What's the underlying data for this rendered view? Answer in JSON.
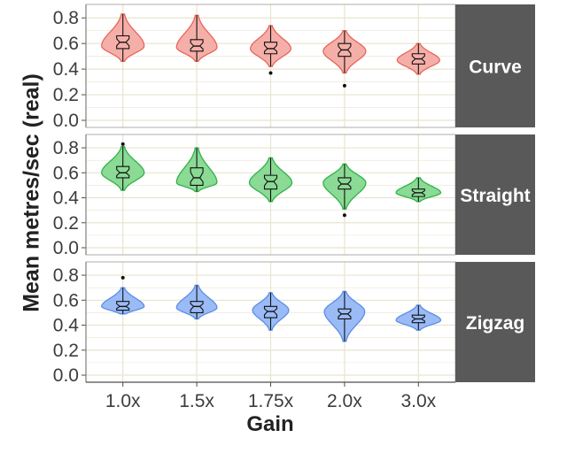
{
  "chart_data": {
    "type": "violin",
    "xlabel": "Gain",
    "ylabel": "Mean metres/sec (real)",
    "categories": [
      "1.0x",
      "1.5x",
      "1.75x",
      "2.0x",
      "3.0x"
    ],
    "ylim": [
      0.0,
      0.85
    ],
    "yticks": [
      "0.0",
      "0.2",
      "0.4",
      "0.6",
      "0.8"
    ],
    "grid": true,
    "colors": {
      "panel_strip": "#595959",
      "strip_text": "#ffffff",
      "grid": "#e8e4cf",
      "axis": "#4d4d4d",
      "text": "#3d3d3d"
    },
    "panels": [
      {
        "label": "Curve",
        "fill": "#f4a6a0",
        "stroke": "#e8655b",
        "groups": [
          {
            "category": "1.0x",
            "min": 0.46,
            "q1": 0.56,
            "median": 0.61,
            "q3": 0.66,
            "max": 0.83,
            "outliers": [],
            "mode": 0.58,
            "width": 1.0
          },
          {
            "category": "1.5x",
            "min": 0.46,
            "q1": 0.54,
            "median": 0.58,
            "q3": 0.63,
            "max": 0.82,
            "outliers": [],
            "mode": 0.57,
            "width": 0.95
          },
          {
            "category": "1.75x",
            "min": 0.42,
            "q1": 0.52,
            "median": 0.56,
            "q3": 0.61,
            "max": 0.74,
            "outliers": [
              0.37
            ],
            "mode": 0.56,
            "width": 0.95
          },
          {
            "category": "2.0x",
            "min": 0.37,
            "q1": 0.5,
            "median": 0.55,
            "q3": 0.6,
            "max": 0.7,
            "outliers": [
              0.27
            ],
            "mode": 0.54,
            "width": 1.0
          },
          {
            "category": "3.0x",
            "min": 0.36,
            "q1": 0.44,
            "median": 0.48,
            "q3": 0.52,
            "max": 0.6,
            "outliers": [],
            "mode": 0.47,
            "width": 1.0
          }
        ]
      },
      {
        "label": "Straight",
        "fill": "#7ed68a",
        "stroke": "#2fb34a",
        "groups": [
          {
            "category": "1.0x",
            "min": 0.46,
            "q1": 0.56,
            "median": 0.6,
            "q3": 0.65,
            "max": 0.81,
            "outliers": [
              0.83
            ],
            "mode": 0.6,
            "width": 1.0
          },
          {
            "category": "1.5x",
            "min": 0.45,
            "q1": 0.5,
            "median": 0.56,
            "q3": 0.64,
            "max": 0.8,
            "outliers": [],
            "mode": 0.52,
            "width": 0.95
          },
          {
            "category": "1.75x",
            "min": 0.37,
            "q1": 0.47,
            "median": 0.53,
            "q3": 0.58,
            "max": 0.72,
            "outliers": [],
            "mode": 0.52,
            "width": 1.0
          },
          {
            "category": "2.0x",
            "min": 0.31,
            "q1": 0.47,
            "median": 0.51,
            "q3": 0.56,
            "max": 0.67,
            "outliers": [
              0.26
            ],
            "mode": 0.52,
            "width": 1.0
          },
          {
            "category": "3.0x",
            "min": 0.37,
            "q1": 0.41,
            "median": 0.44,
            "q3": 0.47,
            "max": 0.56,
            "outliers": [],
            "mode": 0.44,
            "width": 1.05
          }
        ]
      },
      {
        "label": "Zigzag",
        "fill": "#8fb4f5",
        "stroke": "#5b8ee6",
        "groups": [
          {
            "category": "1.0x",
            "min": 0.49,
            "q1": 0.52,
            "median": 0.55,
            "q3": 0.59,
            "max": 0.7,
            "outliers": [
              0.78
            ],
            "mode": 0.55,
            "width": 1.0
          },
          {
            "category": "1.5x",
            "min": 0.45,
            "q1": 0.5,
            "median": 0.55,
            "q3": 0.59,
            "max": 0.72,
            "outliers": [],
            "mode": 0.54,
            "width": 0.95
          },
          {
            "category": "1.75x",
            "min": 0.36,
            "q1": 0.46,
            "median": 0.51,
            "q3": 0.55,
            "max": 0.66,
            "outliers": [],
            "mode": 0.52,
            "width": 0.85
          },
          {
            "category": "2.0x",
            "min": 0.27,
            "q1": 0.45,
            "median": 0.49,
            "q3": 0.53,
            "max": 0.67,
            "outliers": [],
            "mode": 0.51,
            "width": 0.95
          },
          {
            "category": "3.0x",
            "min": 0.36,
            "q1": 0.42,
            "median": 0.45,
            "q3": 0.48,
            "max": 0.56,
            "outliers": [],
            "mode": 0.44,
            "width": 1.05
          }
        ]
      }
    ]
  }
}
